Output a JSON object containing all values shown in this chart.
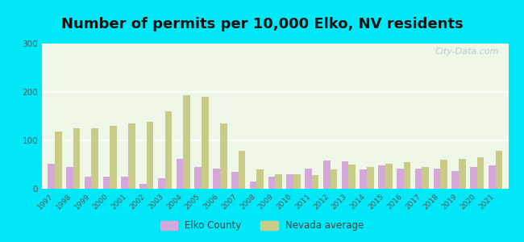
{
  "title": "Number of permits per 10,000 Elko, NV residents",
  "years": [
    1997,
    1998,
    1999,
    2000,
    2001,
    2002,
    2003,
    2004,
    2005,
    2006,
    2007,
    2008,
    2009,
    2010,
    2011,
    2012,
    2013,
    2014,
    2015,
    2016,
    2017,
    2018,
    2019,
    2020,
    2021
  ],
  "elko_county": [
    52,
    45,
    25,
    25,
    25,
    10,
    22,
    62,
    45,
    42,
    35,
    15,
    25,
    30,
    42,
    58,
    57,
    40,
    48,
    42,
    42,
    42,
    37,
    45,
    48
  ],
  "nevada_avg": [
    118,
    125,
    125,
    130,
    135,
    138,
    160,
    193,
    190,
    135,
    78,
    40,
    30,
    30,
    28,
    40,
    50,
    45,
    52,
    55,
    45,
    60,
    62,
    65,
    78
  ],
  "elko_color": "#d4a8d8",
  "nevada_color": "#c8cc88",
  "background_outer": "#00e8f8",
  "background_inner": "#eef7e8",
  "ylim": [
    0,
    300
  ],
  "yticks": [
    0,
    100,
    200,
    300
  ],
  "bar_width": 0.38,
  "title_fontsize": 13,
  "legend_label_elko": "Elko County",
  "legend_label_nevada": "Nevada average",
  "watermark": "City-Data.com"
}
